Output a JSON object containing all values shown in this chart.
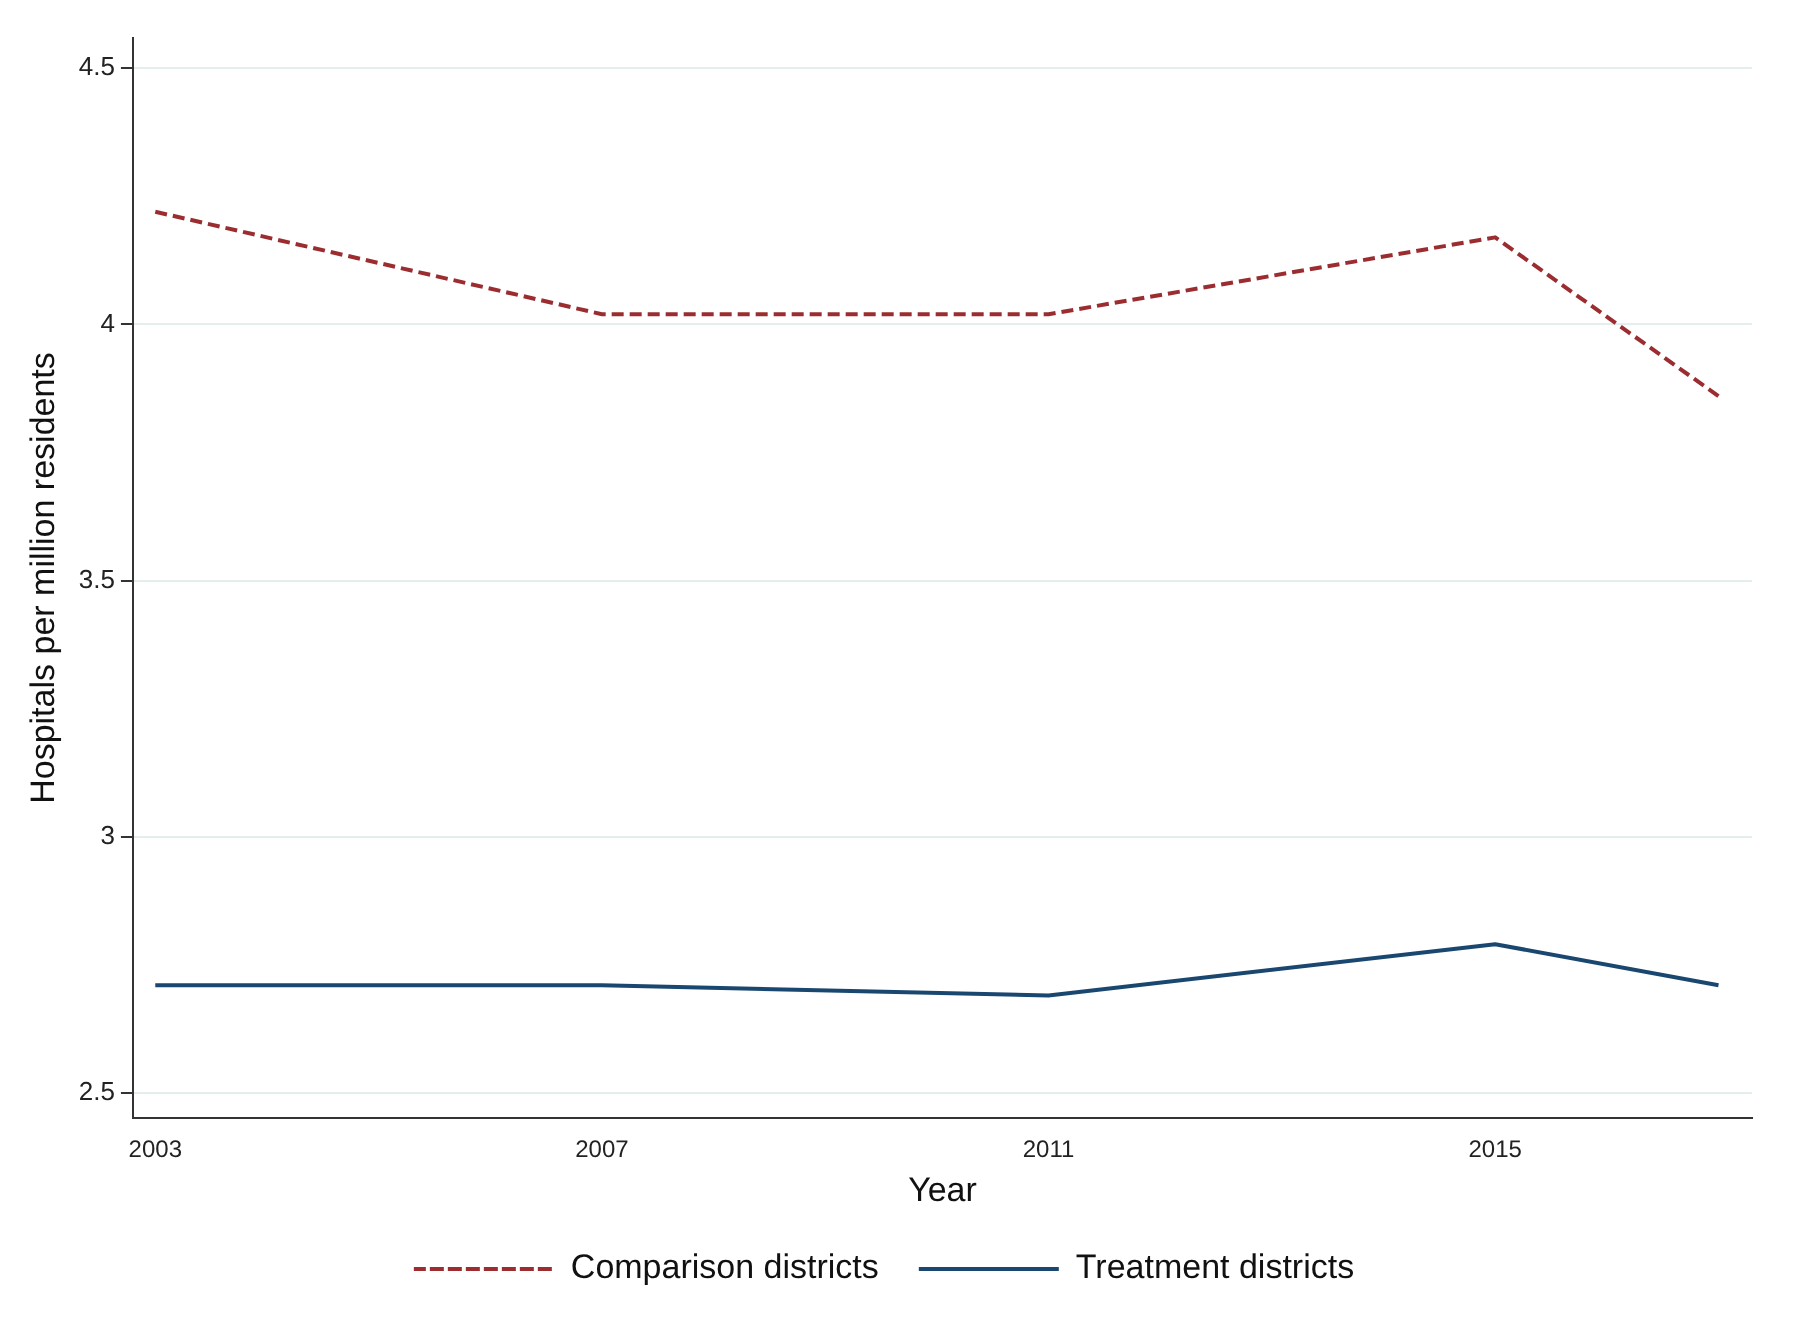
{
  "chart_data": {
    "type": "line",
    "xlabel": "Year",
    "ylabel": "Hospitals per million residents",
    "x": [
      2003,
      2007,
      2011,
      2015,
      2017
    ],
    "series": [
      {
        "name": "Comparison districts",
        "color": "#9b2d30",
        "line_style": "dashed",
        "values": [
          4.22,
          4.02,
          4.02,
          4.17,
          3.86
        ]
      },
      {
        "name": "Treatment districts",
        "color": "#1a476f",
        "line_style": "solid",
        "values": [
          2.71,
          2.71,
          2.69,
          2.79,
          2.71
        ]
      }
    ],
    "xlim": [
      2002.8,
      2017.3
    ],
    "xticks": [
      2003,
      2007,
      2011,
      2015
    ],
    "ylim": [
      2.45,
      4.56
    ],
    "yticks": [
      2.5,
      3,
      3.5,
      4,
      4.5
    ],
    "grid": "y",
    "legend": "bottom",
    "marker": "none"
  }
}
